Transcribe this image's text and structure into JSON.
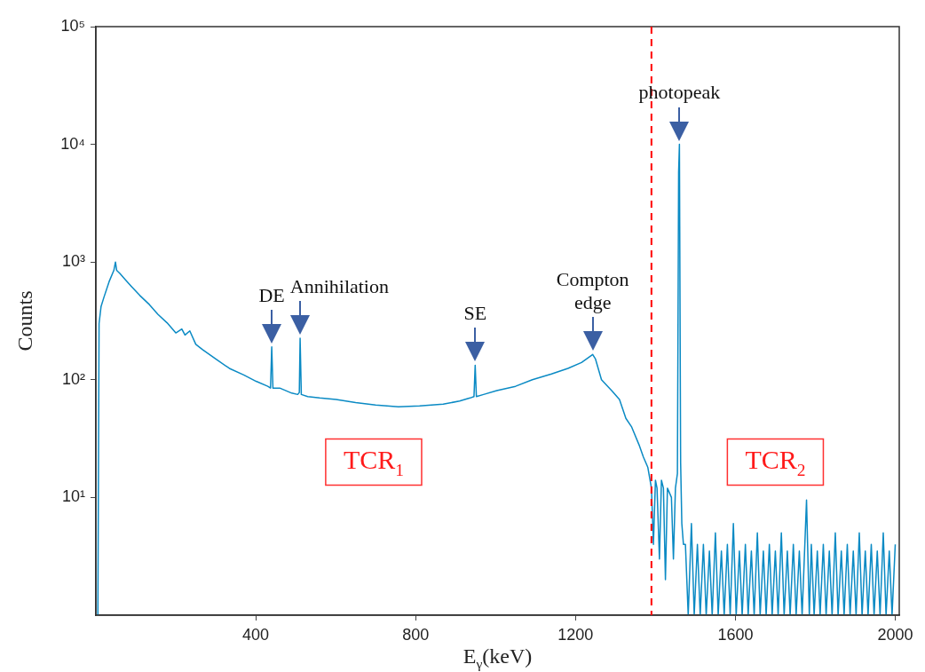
{
  "chart_data": {
    "type": "line",
    "xlabel": "E$_{γ}$(keV)",
    "ylabel": "Counts",
    "x": [
      5,
      8,
      13,
      20,
      33,
      45,
      49,
      52,
      60,
      75,
      89,
      110,
      134,
      155,
      178,
      200,
      215,
      223,
      235,
      250,
      267,
      300,
      334,
      370,
      401,
      430,
      437,
      440,
      443,
      460,
      490,
      505,
      509,
      511,
      514,
      530,
      560,
      601,
      650,
      700,
      757,
      810,
      869,
      910,
      936,
      946,
      949,
      952,
      970,
      1003,
      1050,
      1092,
      1140,
      1181,
      1215,
      1243,
      1250,
      1265,
      1292,
      1310,
      1326,
      1340,
      1359,
      1370,
      1381,
      1390,
      1395,
      1400,
      1404,
      1410,
      1415,
      1420,
      1425,
      1430,
      1440,
      1445,
      1450,
      1455,
      1458,
      1460,
      1463,
      1466,
      1470,
      1473,
      1475,
      1482,
      1490,
      1497,
      1505,
      1512,
      1520,
      1527,
      1535,
      1542,
      1550,
      1557,
      1565,
      1572,
      1580,
      1587,
      1595,
      1602,
      1610,
      1617,
      1625,
      1632,
      1640,
      1647,
      1655,
      1662,
      1670,
      1677,
      1685,
      1692,
      1700,
      1707,
      1715,
      1722,
      1730,
      1737,
      1745,
      1752,
      1760,
      1767,
      1778,
      1785,
      1790,
      1797,
      1805,
      1812,
      1820,
      1827,
      1835,
      1842,
      1850,
      1857,
      1865,
      1872,
      1880,
      1887,
      1895,
      1902,
      1910,
      1917,
      1925,
      1932,
      1940,
      1947,
      1955,
      1962,
      1970,
      1977,
      1985,
      1992,
      2000
    ],
    "series": [
      {
        "color": "#0a8ac4",
        "values": [
          1,
          300,
          420,
          500,
          680,
          850,
          1000,
          850,
          800,
          700,
          620,
          520,
          435,
          360,
          305,
          250,
          270,
          240,
          260,
          200,
          180,
          150,
          125,
          110,
          97,
          88,
          85,
          190,
          85,
          85,
          77,
          75,
          78,
          225,
          75,
          72,
          70,
          68,
          64,
          61,
          59,
          60,
          62,
          66,
          70,
          72,
          133,
          72,
          75,
          81,
          88,
          100,
          112,
          125,
          140,
          164,
          150,
          100,
          80,
          68,
          47,
          40,
          28,
          22,
          18,
          12,
          4,
          14,
          12,
          3,
          14,
          12,
          2,
          12,
          10,
          3,
          12,
          16,
          5800,
          10000,
          20,
          6,
          4,
          4,
          4,
          1,
          6,
          1,
          4,
          1,
          4,
          1,
          3.5,
          1,
          5,
          1,
          3.5,
          1,
          4,
          1,
          6,
          1,
          3.5,
          1,
          4,
          1,
          3.5,
          1,
          5,
          1,
          3.5,
          1,
          4,
          1,
          3.5,
          1,
          5,
          1,
          3.5,
          1,
          4,
          1,
          3.5,
          1,
          9.5,
          1,
          4,
          1,
          3.5,
          1,
          4,
          1,
          3.5,
          1,
          5,
          1,
          3.5,
          1,
          4,
          1,
          3.5,
          1,
          5,
          1,
          3.5,
          1,
          4,
          1,
          3.5,
          1,
          5,
          1,
          3.5,
          1,
          4
        ]
      }
    ],
    "xlim": [
      0,
      2010
    ],
    "xticks": [
      400,
      800,
      1200,
      1600,
      2000
    ],
    "ylim": [
      1,
      100000
    ],
    "yticks": [
      {
        "value": 10,
        "label": "10¹"
      },
      {
        "value": 100,
        "label": "10²"
      },
      {
        "value": 1000,
        "label": "10³"
      },
      {
        "value": 10000,
        "label": "10⁴"
      },
      {
        "value": 100000,
        "label": "10⁵"
      }
    ],
    "log": "y",
    "ref_lines": [
      {
        "axis": "x",
        "value": 1390,
        "color": "#ff0000",
        "line_style": "dashed"
      }
    ],
    "annotations": [
      {
        "text": "DE",
        "x": 440,
        "y": 190
      },
      {
        "text": "Annihilation",
        "x": 511,
        "y": 225
      },
      {
        "text": "SE",
        "x": 949,
        "y": 133
      },
      {
        "text": "Compton edge",
        "x": 1243,
        "y": 164
      },
      {
        "text": "photopeak",
        "x": 1460,
        "y": 10000
      },
      "TCR$_{1}$",
      "TCR$_{2}$"
    ]
  }
}
